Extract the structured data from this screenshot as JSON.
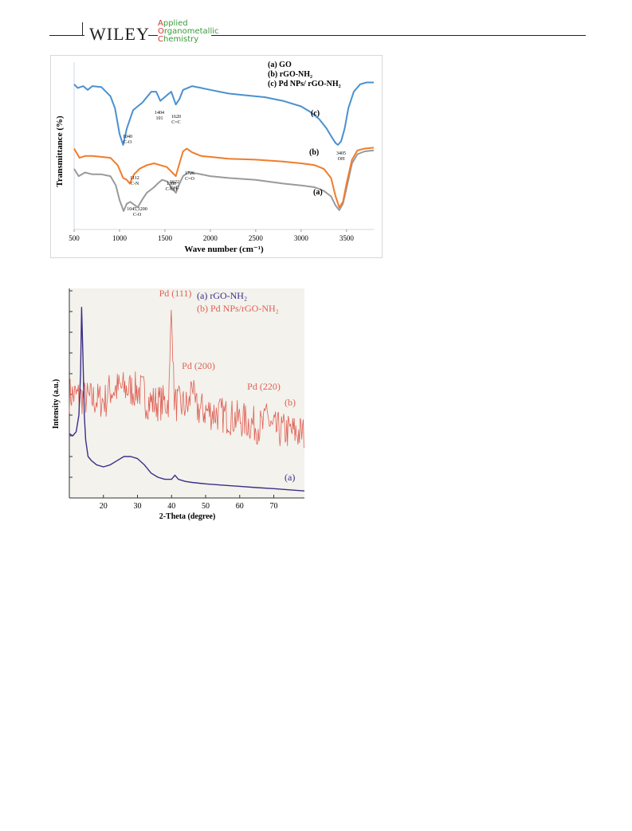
{
  "header": {
    "publisher": "WILEY",
    "journal_line1_cap": "A",
    "journal_line1_rest": "pplied",
    "journal_line2_cap": "O",
    "journal_line2_rest": "rganometallic",
    "journal_line3_cap": "C",
    "journal_line3_rest": "hemistry"
  },
  "colors": {
    "ftir_a": "#9a9a9a",
    "ftir_b": "#ef7d2c",
    "ftir_c": "#4a90d0",
    "xrd_a": "#3a2f8a",
    "xrd_b": "#e06055",
    "journal_green": "#3a9a3a",
    "journal_red": "#d9302c"
  },
  "chart_data": [
    {
      "type": "line",
      "xlabel": "Wave number (cm⁻¹)",
      "ylabel": "Transmittance (%)",
      "xlim": [
        500,
        3800
      ],
      "xticks": [
        500,
        1000,
        1500,
        2000,
        2500,
        3000,
        3500
      ],
      "legend": [
        "(a) GO",
        "(b) rGO-NH₂",
        "(c) Pd NPs/ rGO-NH₂"
      ],
      "legend_position": "top-right",
      "series_labels": {
        "a": "(a)",
        "b": "(b)",
        "c": "(c)"
      },
      "series": [
        {
          "name": "(a) GO",
          "x": [
            500,
            550,
            620,
            700,
            800,
            900,
            960,
            1000,
            1045,
            1080,
            1120,
            1200,
            1260,
            1300,
            1380,
            1420,
            1470,
            1530,
            1580,
            1622,
            1660,
            1700,
            1726,
            1760,
            1850,
            2000,
            2200,
            2500,
            2800,
            3000,
            3150,
            3250,
            3330,
            3380,
            3420,
            3460,
            3500,
            3560,
            3620,
            3700,
            3800
          ],
          "y": [
            66,
            58,
            62,
            60,
            60,
            58,
            48,
            32,
            20,
            28,
            30,
            24,
            34,
            40,
            46,
            50,
            54,
            52,
            44,
            40,
            50,
            58,
            60,
            62,
            61,
            58,
            56,
            54,
            50,
            48,
            46,
            42,
            36,
            26,
            21,
            28,
            45,
            72,
            82,
            85,
            86
          ]
        },
        {
          "name": "(b) rGO-NH₂",
          "x": [
            500,
            560,
            620,
            700,
            800,
            900,
            980,
            1040,
            1080,
            1112,
            1160,
            1220,
            1300,
            1380,
            1450,
            1520,
            1580,
            1620,
            1660,
            1700,
            1740,
            1800,
            1900,
            2000,
            2200,
            2500,
            2800,
            3000,
            3150,
            3250,
            3330,
            3380,
            3420,
            3460,
            3500,
            3560,
            3620,
            3700,
            3800
          ],
          "y": [
            88,
            78,
            80,
            80,
            79,
            78,
            70,
            56,
            54,
            50,
            60,
            66,
            70,
            72,
            70,
            68,
            62,
            58,
            72,
            85,
            88,
            84,
            80,
            79,
            77,
            76,
            74,
            72,
            70,
            66,
            56,
            36,
            24,
            30,
            50,
            76,
            86,
            88,
            89
          ]
        },
        {
          "name": "(c) Pd NPs/ rGO-NH₂",
          "x": [
            500,
            540,
            600,
            650,
            700,
            800,
            900,
            950,
            1000,
            1040,
            1080,
            1150,
            1250,
            1350,
            1404,
            1450,
            1520,
            1570,
            1620,
            1660,
            1700,
            1800,
            1900,
            2000,
            2200,
            2400,
            2600,
            2800,
            3000,
            3100,
            3200,
            3280,
            3340,
            3380,
            3405,
            3440,
            3480,
            3520,
            3580,
            3650,
            3720,
            3800
          ],
          "y": [
            158,
            154,
            156,
            152,
            156,
            155,
            145,
            132,
            104,
            92,
            110,
            130,
            138,
            150,
            150,
            140,
            146,
            150,
            136,
            142,
            152,
            156,
            154,
            152,
            148,
            146,
            144,
            140,
            134,
            128,
            120,
            110,
            100,
            94,
            92,
            96,
            110,
            132,
            150,
            158,
            160,
            160
          ]
        }
      ],
      "annotations": [
        {
          "x": 1404,
          "label": "1404",
          "label2": "101"
        },
        {
          "x": 1620,
          "label": "1620",
          "label2": "C=C"
        },
        {
          "x": 1040,
          "label": "1040",
          "label2": "C-O"
        },
        {
          "x": 3405,
          "label": "3405",
          "label2": "OH"
        },
        {
          "x": 1112,
          "label": "1112",
          "label2": "C-N"
        },
        {
          "x": 1380,
          "label": "1380",
          "label2": "C-OH"
        },
        {
          "x": 1622,
          "label": "1622",
          "label2": "C=C"
        },
        {
          "x": 1726,
          "label": "1726",
          "label2": "C=O"
        },
        {
          "x": 1120,
          "label": "1045,1200",
          "label2": "C-O"
        }
      ]
    },
    {
      "type": "line",
      "xlabel": "2-Theta (degree)",
      "ylabel": "Intensity (a.u.)",
      "xlim": [
        10,
        79
      ],
      "xticks": [
        20,
        30,
        40,
        50,
        60,
        70
      ],
      "legend": [
        "(a) rGO-NH₂",
        "(b) Pd NPs/rGO-NH₂"
      ],
      "legend_position": "top-right",
      "series_labels": {
        "a": "(a)",
        "b": "(b)"
      },
      "peak_labels": [
        {
          "x": 40,
          "label": "Pd (111)"
        },
        {
          "x": 46,
          "label": "Pd (200)"
        },
        {
          "x": 68,
          "label": "Pd (220)"
        }
      ],
      "series": [
        {
          "name": "(a) rGO-NH₂",
          "x": [
            10,
            11,
            12,
            12.8,
            13.3,
            13.6,
            14,
            14.4,
            14.8,
            15.5,
            16.5,
            18,
            20,
            22,
            24,
            26,
            28,
            30,
            32,
            34,
            36,
            38,
            40,
            41,
            42,
            44,
            46,
            50,
            55,
            60,
            65,
            70,
            75,
            79
          ],
          "y": [
            31,
            30,
            32,
            40,
            60,
            92,
            68,
            40,
            28,
            20,
            18,
            16,
            15,
            16,
            18,
            20,
            20,
            19,
            16,
            12,
            10,
            9,
            9,
            11,
            9,
            8,
            7.5,
            6.8,
            6.2,
            5.6,
            5,
            4.5,
            3.9,
            3.4
          ]
        },
        {
          "name": "(b) Pd NPs/rGO-NH₂",
          "baseline_x": [
            10,
            15,
            20,
            25,
            30,
            35,
            40,
            45,
            50,
            55,
            60,
            65,
            70,
            75,
            79
          ],
          "baseline_y": [
            50,
            48,
            47,
            49,
            48,
            46,
            46,
            44,
            42,
            40,
            38,
            35,
            33,
            32,
            31
          ],
          "peaks_x": [
            40,
            46,
            68
          ],
          "peaks_y": [
            92,
            58,
            45
          ]
        }
      ]
    }
  ]
}
